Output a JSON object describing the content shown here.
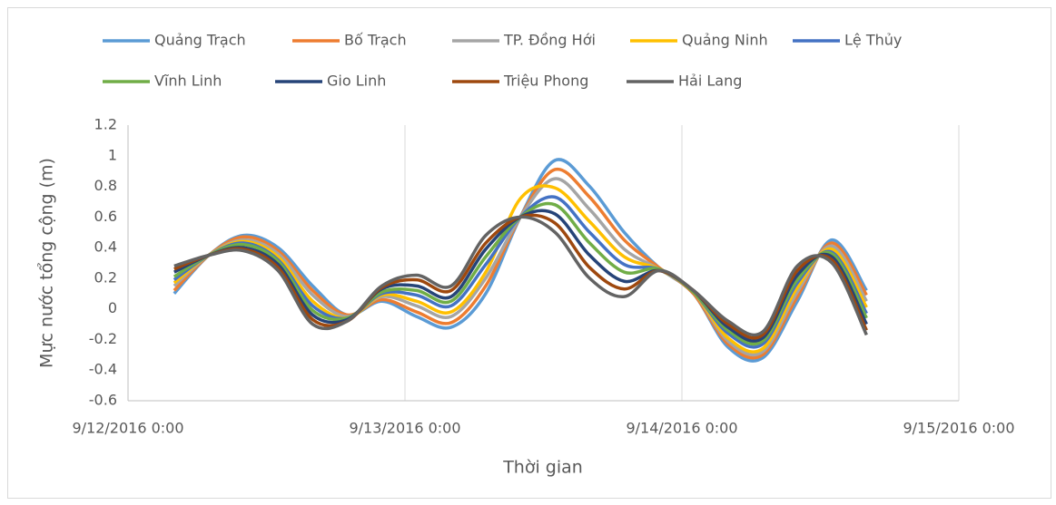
{
  "chart_data": {
    "type": "line",
    "xlabel": "Thời gian",
    "ylabel": "Mực nước tổng cộng (m)",
    "x": [
      "9/12/2016 4:00",
      "9/12/2016 7:00",
      "9/12/2016 10:00",
      "9/12/2016 13:00",
      "9/12/2016 16:00",
      "9/12/2016 19:00",
      "9/12/2016 22:00",
      "9/13/2016 1:00",
      "9/13/2016 4:00",
      "9/13/2016 7:00",
      "9/13/2016 10:00",
      "9/13/2016 13:00",
      "9/13/2016 16:00",
      "9/13/2016 19:00",
      "9/13/2016 22:00",
      "9/14/2016 1:00",
      "9/14/2016 4:00",
      "9/14/2016 7:00",
      "9/14/2016 10:00",
      "9/14/2016 13:00",
      "9/14/2016 16:00"
    ],
    "series": [
      {
        "name": "Quảng Trạch",
        "color": "#5b9bd5",
        "values": [
          0.1,
          0.35,
          0.48,
          0.4,
          0.15,
          -0.04,
          0.05,
          -0.05,
          -0.12,
          0.1,
          0.6,
          0.97,
          0.8,
          0.5,
          0.27,
          0.1,
          -0.25,
          -0.32,
          0.05,
          0.45,
          0.12
        ]
      },
      {
        "name": "Bố Trạch",
        "color": "#ed7d31",
        "values": [
          0.12,
          0.35,
          0.47,
          0.38,
          0.12,
          -0.04,
          0.06,
          -0.02,
          -0.09,
          0.15,
          0.6,
          0.91,
          0.73,
          0.45,
          0.27,
          0.1,
          -0.23,
          -0.3,
          0.08,
          0.43,
          0.09
        ]
      },
      {
        "name": "TP. Đồng Hới",
        "color": "#a5a5a5",
        "values": [
          0.15,
          0.35,
          0.45,
          0.36,
          0.09,
          -0.05,
          0.08,
          0.02,
          -0.05,
          0.2,
          0.6,
          0.85,
          0.65,
          0.39,
          0.26,
          0.11,
          -0.21,
          -0.28,
          0.11,
          0.41,
          0.05
        ]
      },
      {
        "name": "Quảng Ninh",
        "color": "#ffc000",
        "values": [
          0.17,
          0.35,
          0.44,
          0.34,
          0.05,
          -0.06,
          0.09,
          0.05,
          -0.02,
          0.24,
          0.72,
          0.79,
          0.57,
          0.34,
          0.26,
          0.11,
          -0.19,
          -0.26,
          0.14,
          0.39,
          0.01
        ]
      },
      {
        "name": "Lệ Thủy",
        "color": "#4472c4",
        "values": [
          0.19,
          0.35,
          0.43,
          0.32,
          0.02,
          -0.06,
          0.1,
          0.09,
          0.02,
          0.29,
          0.6,
          0.73,
          0.5,
          0.29,
          0.26,
          0.11,
          -0.16,
          -0.23,
          0.17,
          0.37,
          -0.03
        ]
      },
      {
        "name": "Vĩnh Linh",
        "color": "#70ad47",
        "values": [
          0.21,
          0.35,
          0.42,
          0.31,
          -0.01,
          -0.06,
          0.11,
          0.12,
          0.05,
          0.34,
          0.6,
          0.68,
          0.43,
          0.24,
          0.26,
          0.11,
          -0.14,
          -0.21,
          0.19,
          0.36,
          -0.06
        ]
      },
      {
        "name": "Gio Linh",
        "color": "#264478",
        "values": [
          0.24,
          0.35,
          0.4,
          0.29,
          -0.04,
          -0.07,
          0.13,
          0.15,
          0.08,
          0.39,
          0.6,
          0.62,
          0.35,
          0.18,
          0.25,
          0.12,
          -0.12,
          -0.19,
          0.22,
          0.34,
          -0.1
        ]
      },
      {
        "name": "Triệu Phong",
        "color": "#9e480e",
        "values": [
          0.26,
          0.35,
          0.39,
          0.27,
          -0.07,
          -0.08,
          0.14,
          0.19,
          0.12,
          0.43,
          0.6,
          0.56,
          0.27,
          0.13,
          0.25,
          0.12,
          -0.1,
          -0.17,
          0.25,
          0.32,
          -0.14
        ]
      },
      {
        "name": "Hải Lang",
        "color": "#636363",
        "values": [
          0.28,
          0.35,
          0.38,
          0.25,
          -0.1,
          -0.08,
          0.15,
          0.22,
          0.15,
          0.48,
          0.6,
          0.5,
          0.2,
          0.08,
          0.25,
          0.12,
          -0.08,
          -0.15,
          0.28,
          0.3,
          -0.17
        ]
      }
    ],
    "xlim": [
      "9/12/2016 0:00",
      "9/15/2016 0:00"
    ],
    "xticks": [
      "9/12/2016 0:00",
      "9/13/2016 0:00",
      "9/14/2016 0:00",
      "9/15/2016 0:00"
    ],
    "ylim": [
      -0.6,
      1.2
    ],
    "yticks": [
      -0.6,
      -0.4,
      -0.2,
      0,
      0.2,
      0.4,
      0.6,
      0.8,
      1,
      1.2
    ],
    "grid": "x",
    "legend": "top"
  }
}
